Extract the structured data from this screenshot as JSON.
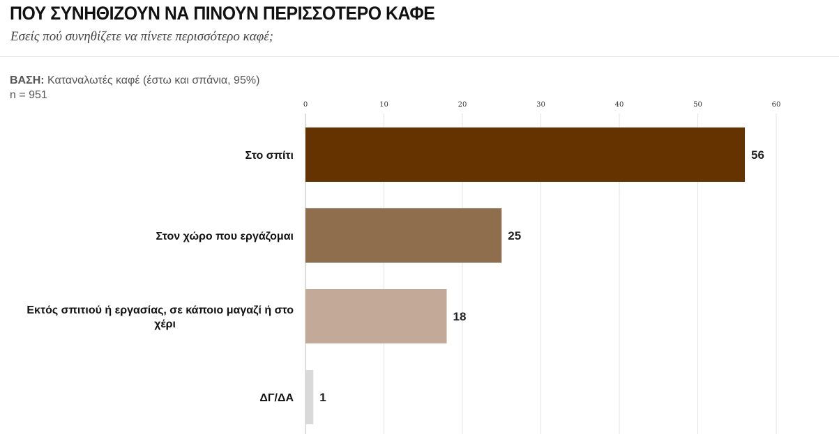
{
  "header": {
    "title": "ΠΟΥ ΣΥΝΗΘΙΖΟΥΝ ΝΑ ΠΙΝΟΥΝ ΠΕΡΙΣΣΟΤΕΡΟ ΚΑΦΕ",
    "subtitle": "Εσείς πού συνηθίζετε να πίνετε περισσότερο καφέ;"
  },
  "base": {
    "label": "ΒΑΣΗ:",
    "text": " Καταναλωτές καφέ (έστω και σπάνια, 95%)",
    "n": "n = 951"
  },
  "chart_data": {
    "type": "bar",
    "orientation": "horizontal",
    "categories": [
      "Στο σπίτι",
      "Στον χώρο που εργάζομαι",
      "Εκτός σπιτιού ή εργασίας, σε κάποιο μαγαζί ή στο χέρι",
      "ΔΓ/ΔΑ"
    ],
    "category_lines": [
      [
        "Στο σπίτι"
      ],
      [
        "Στον χώρο που εργάζομαι"
      ],
      [
        "Εκτός σπιτιού ή εργασίας, σε κάποιο μαγαζί ή στο",
        "χέρι"
      ],
      [
        "ΔΓ/ΔΑ"
      ]
    ],
    "values": [
      56,
      25,
      18,
      1
    ],
    "value_labels": [
      "56",
      "25",
      "18",
      "1"
    ],
    "colors": [
      "#653300",
      "#8f6e4e",
      "#c2a998",
      "#d9d9d9"
    ],
    "xlim": [
      0,
      60
    ],
    "ticks": [
      0,
      10,
      20,
      30,
      40,
      50,
      60
    ],
    "tick_labels": [
      "0",
      "10",
      "20",
      "30",
      "40",
      "50",
      "60"
    ],
    "axis_position": "top",
    "grid": true,
    "legend": "none"
  }
}
